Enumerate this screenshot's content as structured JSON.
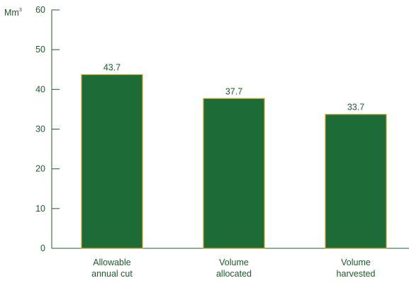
{
  "chart_data": {
    "type": "bar",
    "title": "",
    "xlabel": "",
    "ylabel": "Mm",
    "ylabel_superscript": "3",
    "categories": [
      [
        "Allowable",
        "annual cut"
      ],
      [
        "Volume",
        "allocated"
      ],
      [
        "Volume",
        "harvested"
      ]
    ],
    "values": [
      43.7,
      37.7,
      33.7
    ],
    "value_labels": [
      "43.7",
      "37.7",
      "33.7"
    ],
    "ylim": [
      0,
      60
    ],
    "yticks": [
      "0",
      "10",
      "20",
      "30",
      "40",
      "50",
      "60"
    ],
    "grid": false,
    "legend": "none",
    "colors": {
      "bar_fill": "#1d6b35",
      "bar_edge": "#c8a032",
      "axis": "#1e5a2e",
      "text": "#1e5a2e"
    }
  }
}
